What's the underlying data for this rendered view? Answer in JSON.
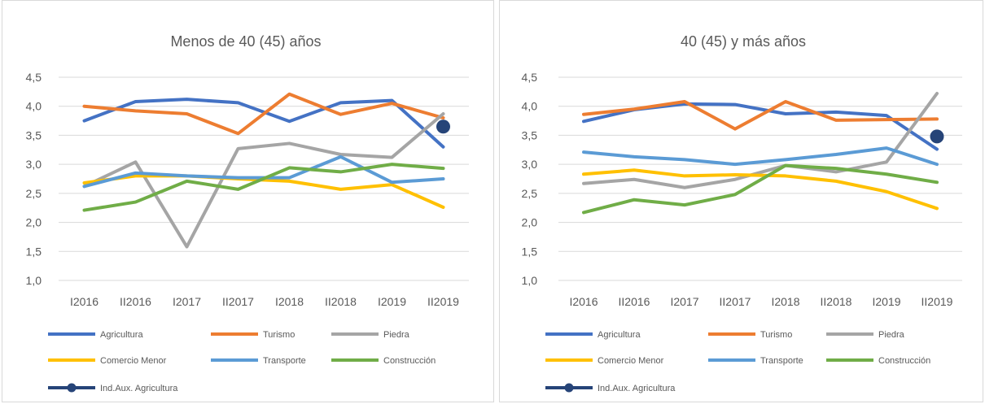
{
  "chart_data": [
    {
      "type": "line",
      "title": "Menos de 40 (45) años",
      "categories": [
        "I2016",
        "II2016",
        "I2017",
        "II2017",
        "I2018",
        "II2018",
        "I2019",
        "II2019"
      ],
      "y_ticks": [
        "1,0",
        "1,5",
        "2,0",
        "2,5",
        "3,0",
        "3,5",
        "4,0",
        "4,5"
      ],
      "ylim": [
        1.0,
        4.5
      ],
      "grid": true,
      "legend_position": "bottom",
      "series": [
        {
          "name": "Agricultura",
          "color": "#4472C4",
          "values": [
            3.75,
            4.08,
            4.12,
            4.06,
            3.74,
            4.06,
            4.1,
            3.3
          ]
        },
        {
          "name": "Turismo",
          "color": "#ED7D31",
          "values": [
            4.0,
            3.92,
            3.87,
            3.53,
            4.21,
            3.86,
            4.05,
            3.8
          ]
        },
        {
          "name": "Piedra",
          "color": "#A5A5A5",
          "values": [
            2.62,
            3.04,
            1.58,
            3.27,
            3.36,
            3.17,
            3.12,
            3.87
          ]
        },
        {
          "name": "Comercio Menor",
          "color": "#FFC000",
          "values": [
            2.68,
            2.8,
            2.8,
            2.75,
            2.71,
            2.57,
            2.65,
            2.26
          ]
        },
        {
          "name": "Transporte",
          "color": "#5B9BD5",
          "values": [
            2.62,
            2.85,
            2.8,
            2.77,
            2.77,
            3.13,
            2.69,
            2.75
          ]
        },
        {
          "name": "Construcción",
          "color": "#70AD47",
          "values": [
            2.21,
            2.35,
            2.71,
            2.57,
            2.94,
            2.87,
            3.0,
            2.93
          ]
        },
        {
          "name": "Ind.Aux. Agricultura",
          "color": "#264478",
          "marker": true,
          "values": [
            null,
            null,
            null,
            null,
            null,
            null,
            null,
            3.65
          ]
        }
      ]
    },
    {
      "type": "line",
      "title": "40 (45) y más años",
      "categories": [
        "I2016",
        "II2016",
        "I2017",
        "II2017",
        "I2018",
        "II2018",
        "I2019",
        "II2019"
      ],
      "y_ticks": [
        "1,0",
        "1,5",
        "2,0",
        "2,5",
        "3,0",
        "3,5",
        "4,0",
        "4,5"
      ],
      "ylim": [
        1.0,
        4.5
      ],
      "grid": true,
      "legend_position": "bottom",
      "series": [
        {
          "name": "Agricultura",
          "color": "#4472C4",
          "values": [
            3.74,
            3.94,
            4.04,
            4.03,
            3.87,
            3.9,
            3.84,
            3.26
          ]
        },
        {
          "name": "Turismo",
          "color": "#ED7D31",
          "values": [
            3.86,
            3.95,
            4.08,
            3.61,
            4.08,
            3.76,
            3.77,
            3.78
          ]
        },
        {
          "name": "Piedra",
          "color": "#A5A5A5",
          "values": [
            2.67,
            2.74,
            2.6,
            2.74,
            2.98,
            2.87,
            3.04,
            4.22
          ]
        },
        {
          "name": "Comercio Menor",
          "color": "#FFC000",
          "values": [
            2.83,
            2.9,
            2.8,
            2.82,
            2.8,
            2.71,
            2.53,
            2.24
          ]
        },
        {
          "name": "Transporte",
          "color": "#5B9BD5",
          "values": [
            3.21,
            3.13,
            3.08,
            3.0,
            3.08,
            3.17,
            3.28,
            3.0
          ]
        },
        {
          "name": "Construcción",
          "color": "#70AD47",
          "values": [
            2.17,
            2.39,
            2.3,
            2.48,
            2.98,
            2.93,
            2.83,
            2.69
          ]
        },
        {
          "name": "Ind.Aux. Agricultura",
          "color": "#264478",
          "marker": true,
          "values": [
            null,
            null,
            null,
            null,
            null,
            null,
            null,
            3.48
          ]
        }
      ]
    }
  ]
}
